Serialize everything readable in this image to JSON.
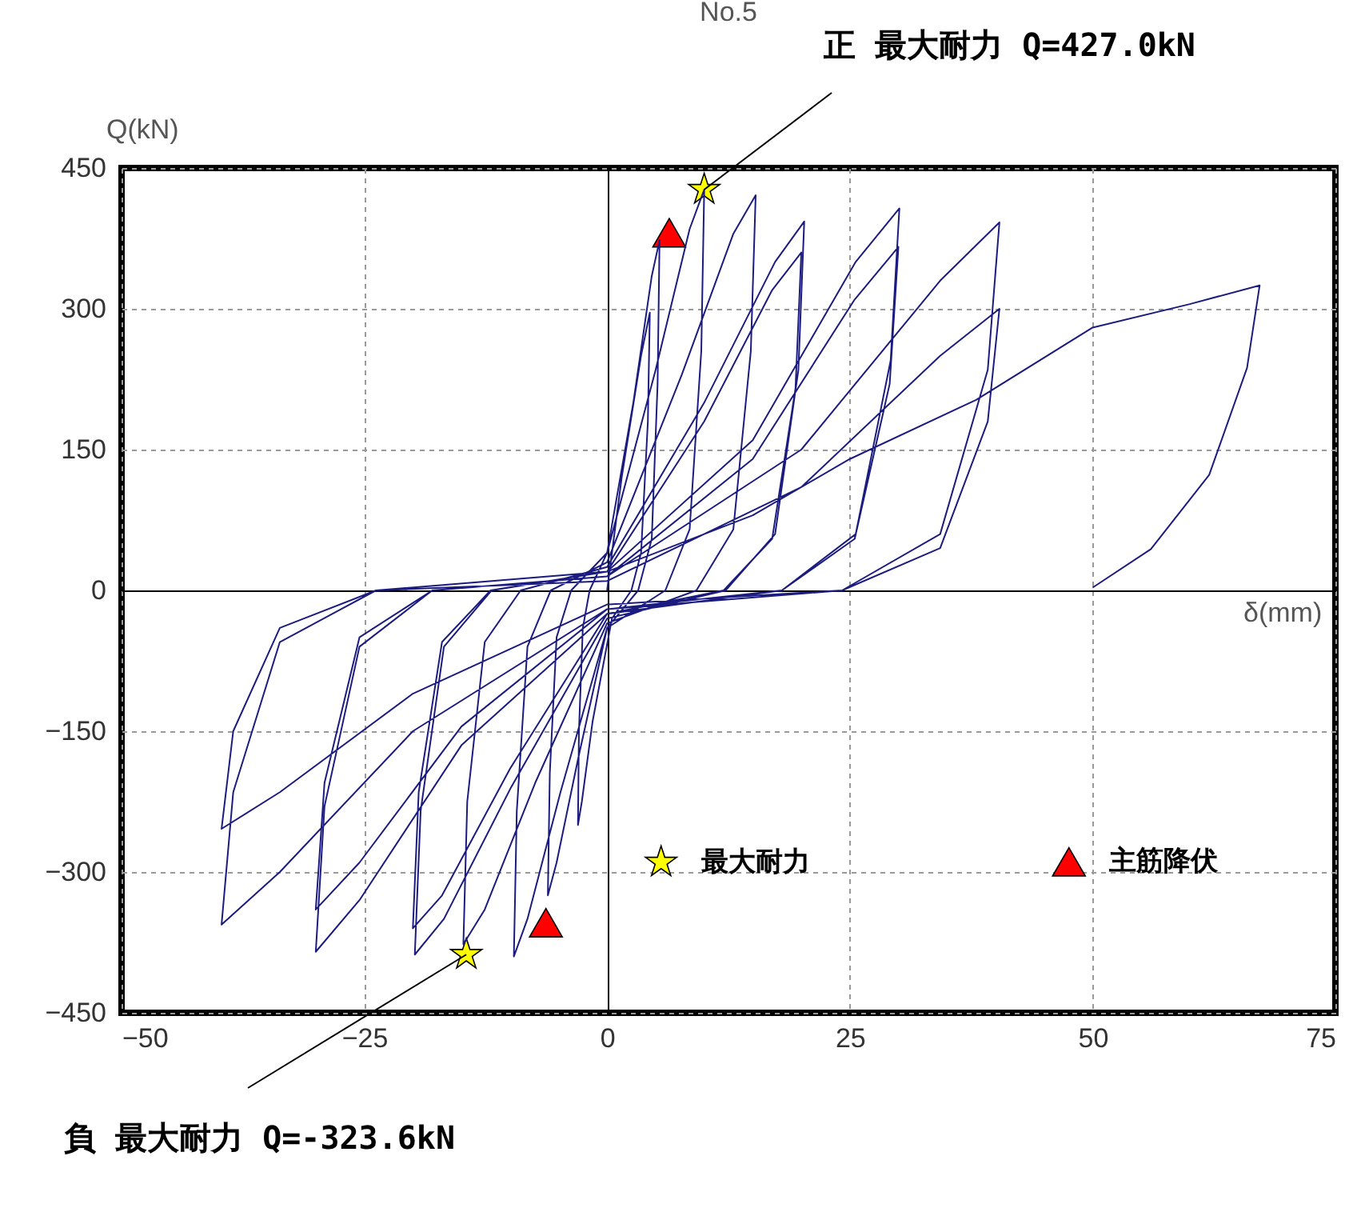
{
  "chart_data": {
    "type": "line",
    "title": "No.5",
    "xlabel": "δ(mm)",
    "ylabel": "Q(kN)",
    "xlim": [
      -50,
      75
    ],
    "xticks": [
      -50,
      -25,
      0,
      25,
      50,
      75
    ],
    "ylim": [
      -450,
      450
    ],
    "yticks": [
      -450,
      -300,
      -150,
      0,
      150,
      300,
      450
    ],
    "grid": true,
    "legend": "bottom right",
    "annotations": [
      {
        "text": "正 最大耐力 Q=427.0kN",
        "x": 10,
        "y": 427
      },
      {
        "text": "負 最大耐力 Q=-323.6kN",
        "x": -14.5,
        "y": -388
      }
    ],
    "series": [
      {
        "color": "#1c1c80",
        "line_style": "solid",
        "x": [
          0,
          1.5,
          3.5,
          4.4,
          4.2,
          3.5,
          2.5,
          0.5,
          -1.5,
          -2.6,
          -3,
          -2.9,
          -2.5,
          -1.8,
          0,
          2.7,
          4.6,
          5.4,
          5.2,
          4.6,
          3.2,
          0,
          -3,
          -5.2,
          -6.1,
          -5.9,
          -5.2,
          -3.7,
          0,
          5,
          8.5,
          10,
          9.7,
          8.5,
          6,
          0,
          -4.8,
          -8.2,
          -9.6,
          -9.3,
          -8.2,
          -5.8,
          0,
          7.7,
          13,
          15.3,
          14.8,
          13,
          9.2,
          0,
          -7.4,
          -12.6,
          -14.8,
          -14.4,
          -12.6,
          -8.9,
          0,
          10,
          17.3,
          20.3,
          19.7,
          17.3,
          12.2,
          0,
          -9.9,
          -16.8,
          -19.8,
          -19.2,
          -16.8,
          -11.9,
          0,
          10,
          17,
          20,
          19.4,
          17,
          12,
          0,
          -10,
          -17,
          -20,
          -19.4,
          -17,
          -12,
          0,
          15,
          25.6,
          30.1,
          29.2,
          25.6,
          18,
          0,
          -15,
          -25.5,
          -30,
          -29.1,
          -25.5,
          -18,
          0,
          15,
          25.5,
          30,
          29.1,
          25.5,
          18,
          0,
          -15,
          -25.5,
          -30,
          -29.1,
          -25.5,
          -18,
          0,
          20,
          34.3,
          40.4,
          39.2,
          34.3,
          24.2,
          0,
          -20,
          -33.7,
          -39.7,
          -38.5,
          -33.7,
          -23.8,
          0,
          20,
          34.3,
          40.4,
          39.2,
          34.3,
          24.2,
          0,
          -20,
          -33.7,
          -39.7,
          -38.5,
          -33.7,
          -23.8,
          0,
          15,
          25,
          38,
          50,
          60,
          67.2,
          65.9,
          62,
          56,
          50
        ],
        "values": [
          0,
          120,
          250,
          296,
          180,
          40,
          0,
          -30,
          -140,
          -225,
          -250,
          -150,
          -40,
          0,
          40,
          200,
          335,
          373,
          220,
          55,
          0,
          -40,
          -180,
          -290,
          -325,
          -195,
          -50,
          0,
          40,
          235,
          385,
          427,
          255,
          65,
          0,
          -40,
          -215,
          -350,
          -390,
          -235,
          -60,
          0,
          30,
          230,
          380,
          421,
          255,
          65,
          0,
          -35,
          -205,
          -340,
          -377,
          -225,
          -55,
          0,
          25,
          200,
          350,
          393,
          235,
          60,
          0,
          -30,
          -210,
          -350,
          -388,
          -235,
          -60,
          0,
          20,
          180,
          320,
          360,
          215,
          55,
          0,
          -25,
          -190,
          -325,
          -360,
          -215,
          -55,
          0,
          20,
          160,
          350,
          407,
          245,
          60,
          0,
          -25,
          -165,
          -330,
          -385,
          -230,
          -60,
          0,
          15,
          140,
          310,
          366,
          220,
          55,
          0,
          -20,
          -145,
          -290,
          -340,
          -205,
          -50,
          0,
          15,
          150,
          330,
          392,
          235,
          60,
          0,
          -20,
          -150,
          -300,
          -356,
          -215,
          -55,
          0,
          10,
          110,
          250,
          300,
          180,
          45,
          0,
          -15,
          -110,
          -215,
          -254,
          -150,
          -40,
          0,
          20,
          80,
          140,
          203,
          280,
          305,
          325,
          237,
          123,
          44,
          3
        ]
      },
      {
        "type": "scatter",
        "name": "最大耐力",
        "marker": "star",
        "color": "#ffff00",
        "x": [
          10,
          -14.5
        ],
        "values": [
          427,
          -388
        ]
      },
      {
        "type": "scatter",
        "name": "主筋降伏",
        "marker": "triangle",
        "color": "#ff0000",
        "x": [
          6.4,
          -6.3
        ],
        "values": [
          381,
          -354
        ]
      }
    ]
  }
}
